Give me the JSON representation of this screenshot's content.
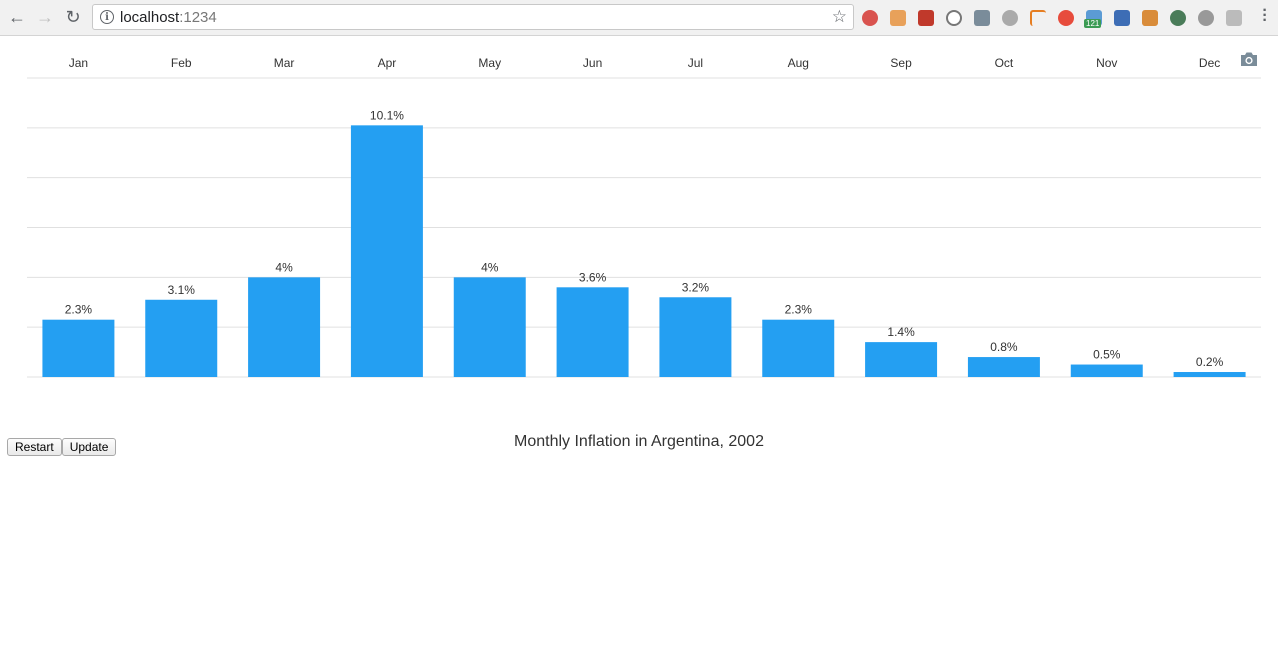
{
  "browser": {
    "url_host": "localhost",
    "url_port": ":1234",
    "ext_badge": "121"
  },
  "colors": {
    "bar": "#249ff2",
    "grid": "#e0e0e0",
    "text": "#333333"
  },
  "chart_data": {
    "type": "bar",
    "title": "Monthly Inflation in Argentina, 2002",
    "categories": [
      "Jan",
      "Feb",
      "Mar",
      "Apr",
      "May",
      "Jun",
      "Jul",
      "Aug",
      "Sep",
      "Oct",
      "Nov",
      "Dec"
    ],
    "values": [
      2.3,
      3.1,
      4,
      10.1,
      4,
      3.6,
      3.2,
      2.3,
      1.4,
      0.8,
      0.5,
      0.2
    ],
    "labels": [
      "2.3%",
      "3.1%",
      "4%",
      "10.1%",
      "4%",
      "3.6%",
      "3.2%",
      "2.3%",
      "1.4%",
      "0.8%",
      "0.5%",
      "0.2%"
    ],
    "ylim": [
      0,
      12
    ],
    "grid": true,
    "x_axis_position": "top"
  },
  "controls": {
    "restart_label": "Restart",
    "update_label": "Update"
  }
}
